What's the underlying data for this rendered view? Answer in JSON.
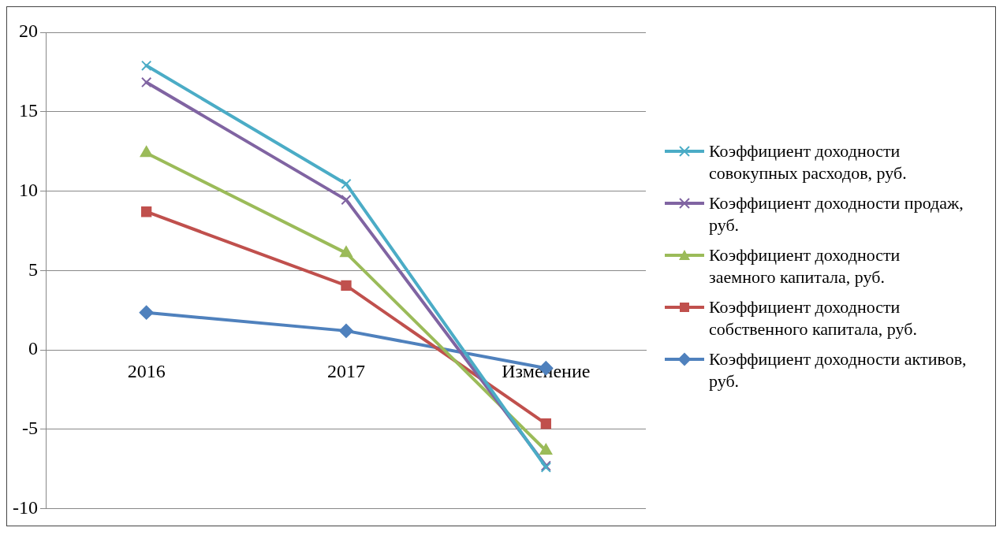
{
  "chart_data": {
    "type": "line",
    "categories": [
      "2016",
      "2017",
      "Изменение"
    ],
    "ylim": [
      -10,
      20
    ],
    "yticks": [
      -10,
      -5,
      0,
      5,
      10,
      15,
      20
    ],
    "grid": "y",
    "legend": "right",
    "line_style": "solid",
    "series": [
      {
        "name": "Коэффициент доходности совокупных расходов, руб.",
        "color": "#4bacc6",
        "marker": "cross",
        "values": [
          17.9,
          10.45,
          -7.4
        ]
      },
      {
        "name": "Коэффициент доходности продаж, руб.",
        "color": "#8064a2",
        "marker": "cross",
        "values": [
          16.85,
          9.45,
          -7.3
        ]
      },
      {
        "name": "Коэффициент доходности заемного капитала, руб.",
        "color": "#9bbb59",
        "marker": "triangle",
        "values": [
          12.4,
          6.1,
          -6.35
        ]
      },
      {
        "name": "Коэффициент доходности собственного капитала, руб.",
        "color": "#c0504d",
        "marker": "square",
        "values": [
          8.7,
          4.05,
          -4.65
        ]
      },
      {
        "name": "Коэффициент доходности активов, руб.",
        "color": "#4f81bd",
        "marker": "diamond",
        "values": [
          2.35,
          1.2,
          -1.15
        ]
      }
    ]
  }
}
